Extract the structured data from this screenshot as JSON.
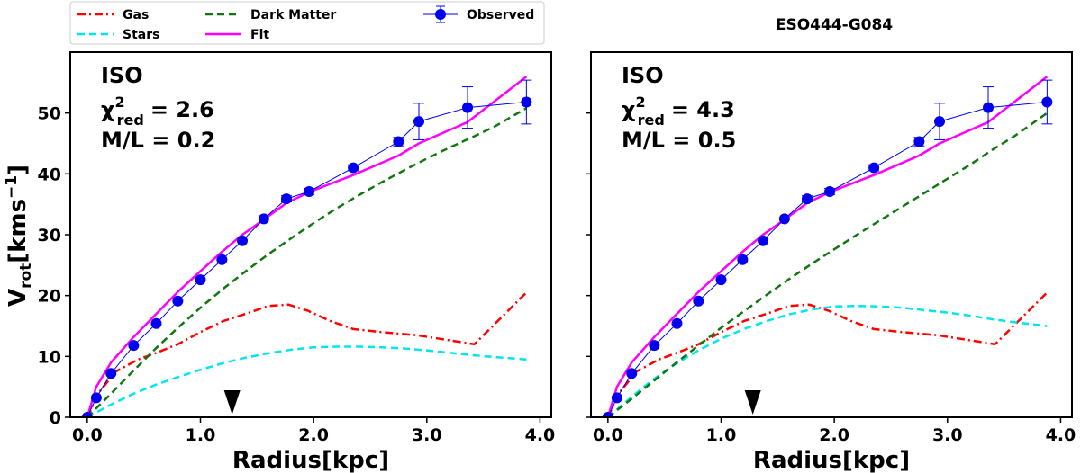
{
  "figure_title": "ESO444-G084",
  "legend": [
    {
      "key": "gas",
      "label": "Gas",
      "color": "#ff0000",
      "style": "dashdot"
    },
    {
      "key": "stars",
      "label": "Stars",
      "color": "#00e5ee",
      "style": "dashed"
    },
    {
      "key": "dm",
      "label": "Dark Matter",
      "color": "#117711",
      "style": "dashed"
    },
    {
      "key": "fit",
      "label": "Fit",
      "color": "#ff00ff",
      "style": "solid"
    },
    {
      "key": "obs",
      "label": "Observed",
      "color": "#0000ee",
      "style": "marker"
    }
  ],
  "ylabel_main": "V",
  "ylabel_sub": "rot",
  "ylabel_unit": "[kms",
  "ylabel_exp": "−1",
  "ylabel_close": "]",
  "chart_data": [
    {
      "type": "line",
      "panel": "left",
      "model": "ISO",
      "chi_label": "χ",
      "chi_exp": "2",
      "chi_sub": "red",
      "chi_value": "= 2.6",
      "ml_text": "M/L = 0.2",
      "xlabel": "Radius[kpc]",
      "ylabel": "Vrot[kms−1]",
      "xlim": [
        -0.15,
        4.1
      ],
      "ylim": [
        0,
        60
      ],
      "xticks": [
        0.0,
        1.0,
        2.0,
        3.0,
        4.0
      ],
      "xtick_labels": [
        "0.0",
        "1.0",
        "2.0",
        "3.0",
        "4.0"
      ],
      "yticks": [
        0,
        10,
        20,
        30,
        40,
        50
      ],
      "ytick_labels": [
        "0",
        "10",
        "20",
        "30",
        "40",
        "50"
      ],
      "marker_x": 1.28,
      "series": [
        {
          "name": "Gas",
          "x": [
            0.0,
            0.1,
            0.25,
            0.45,
            0.6,
            0.8,
            1.0,
            1.2,
            1.4,
            1.6,
            1.78,
            1.95,
            2.15,
            2.35,
            2.6,
            2.9,
            3.15,
            3.42,
            3.88
          ],
          "values": [
            0.0,
            4.0,
            7.5,
            9.5,
            10.5,
            12.0,
            14.0,
            15.8,
            17.0,
            18.3,
            18.5,
            17.5,
            15.8,
            14.5,
            14.0,
            13.5,
            12.8,
            12.0,
            20.5
          ]
        },
        {
          "name": "Stars",
          "x": [
            0.0,
            0.2,
            0.4,
            0.6,
            0.8,
            1.0,
            1.2,
            1.4,
            1.6,
            1.8,
            2.0,
            2.2,
            2.4,
            2.6,
            2.8,
            3.0,
            3.2,
            3.4,
            3.6,
            3.88
          ],
          "values": [
            0.0,
            2.0,
            3.8,
            5.3,
            6.6,
            7.8,
            8.9,
            9.8,
            10.5,
            11.1,
            11.5,
            11.6,
            11.6,
            11.5,
            11.3,
            11.0,
            10.6,
            10.2,
            9.9,
            9.5
          ]
        },
        {
          "name": "Dark Matter",
          "x": [
            0.0,
            0.2,
            0.4,
            0.6,
            0.8,
            1.0,
            1.2,
            1.4,
            1.6,
            1.8,
            2.0,
            2.2,
            2.4,
            2.6,
            2.8,
            3.0,
            3.2,
            3.4,
            3.6,
            3.88
          ],
          "values": [
            0.0,
            3.7,
            7.5,
            11.2,
            14.7,
            18.0,
            21.1,
            24.0,
            26.8,
            29.4,
            31.9,
            34.3,
            36.5,
            38.6,
            40.6,
            42.5,
            44.3,
            46.0,
            47.8,
            50.8
          ]
        },
        {
          "name": "Fit",
          "x": [
            0.0,
            0.08,
            0.21,
            0.41,
            0.61,
            0.8,
            1.0,
            1.19,
            1.37,
            1.56,
            1.76,
            1.96,
            2.35,
            2.75,
            2.93,
            3.36,
            3.88
          ],
          "values": [
            0.0,
            5.0,
            9.0,
            13.2,
            17.0,
            20.6,
            24.0,
            27.2,
            30.0,
            32.5,
            35.2,
            37.0,
            39.8,
            43.0,
            45.0,
            48.5,
            56.0
          ]
        },
        {
          "name": "Observed",
          "x": [
            0.0,
            0.08,
            0.21,
            0.41,
            0.61,
            0.8,
            1.0,
            1.19,
            1.37,
            1.56,
            1.76,
            1.96,
            2.35,
            2.75,
            2.93,
            3.36,
            3.88
          ],
          "values": [
            0.0,
            3.2,
            7.2,
            11.8,
            15.4,
            19.1,
            22.6,
            25.9,
            29.0,
            32.6,
            35.9,
            37.1,
            41.0,
            45.3,
            48.6,
            50.9,
            51.8
          ],
          "errors": [
            0,
            0,
            0,
            0,
            0,
            0,
            0,
            0,
            0,
            0,
            0.5,
            0.5,
            0.5,
            0.7,
            3.0,
            3.4,
            3.6
          ]
        }
      ]
    },
    {
      "type": "line",
      "panel": "right",
      "model": "ISO",
      "chi_label": "χ",
      "chi_exp": "2",
      "chi_sub": "red",
      "chi_value": "= 4.3",
      "ml_text": "M/L = 0.5",
      "xlabel": "Radius[kpc]",
      "ylabel": "",
      "xlim": [
        -0.15,
        4.1
      ],
      "ylim": [
        0,
        60
      ],
      "xticks": [
        0.0,
        1.0,
        2.0,
        3.0,
        4.0
      ],
      "xtick_labels": [
        "0.0",
        "1.0",
        "2.0",
        "3.0",
        "4.0"
      ],
      "yticks": [
        0,
        10,
        20,
        30,
        40,
        50
      ],
      "ytick_labels": [
        "",
        "",
        "",
        "",
        "",
        ""
      ],
      "marker_x": 1.28,
      "series": [
        {
          "name": "Gas",
          "x": [
            0.0,
            0.1,
            0.25,
            0.45,
            0.6,
            0.8,
            1.0,
            1.2,
            1.4,
            1.6,
            1.78,
            1.95,
            2.15,
            2.35,
            2.6,
            2.9,
            3.15,
            3.42,
            3.88
          ],
          "values": [
            0.0,
            4.0,
            7.5,
            9.5,
            10.5,
            12.0,
            14.0,
            15.8,
            17.0,
            18.3,
            18.5,
            17.5,
            15.8,
            14.5,
            14.0,
            13.5,
            12.8,
            12.0,
            20.5
          ]
        },
        {
          "name": "Stars",
          "x": [
            0.0,
            0.2,
            0.4,
            0.6,
            0.8,
            1.0,
            1.2,
            1.4,
            1.6,
            1.8,
            2.0,
            2.2,
            2.4,
            2.6,
            2.8,
            3.0,
            3.2,
            3.4,
            3.6,
            3.88
          ],
          "values": [
            0.0,
            3.2,
            6.2,
            8.8,
            11.0,
            12.9,
            14.5,
            15.8,
            16.9,
            17.7,
            18.2,
            18.3,
            18.2,
            18.0,
            17.6,
            17.2,
            16.7,
            16.1,
            15.6,
            15.0
          ]
        },
        {
          "name": "Dark Matter",
          "x": [
            0.0,
            0.2,
            0.4,
            0.6,
            0.8,
            1.0,
            1.2,
            1.4,
            1.6,
            1.8,
            2.0,
            2.2,
            2.4,
            2.6,
            2.8,
            3.0,
            3.2,
            3.4,
            3.6,
            3.88
          ],
          "values": [
            0.0,
            2.9,
            5.9,
            8.9,
            11.8,
            14.7,
            17.4,
            20.1,
            22.7,
            25.2,
            27.6,
            30.0,
            32.3,
            34.6,
            36.9,
            39.2,
            41.5,
            44.0,
            46.3,
            50.0
          ]
        },
        {
          "name": "Fit",
          "x": [
            0.0,
            0.08,
            0.21,
            0.41,
            0.61,
            0.8,
            1.0,
            1.19,
            1.37,
            1.56,
            1.76,
            1.96,
            2.35,
            2.75,
            2.93,
            3.36,
            3.88
          ],
          "values": [
            0.0,
            5.0,
            9.0,
            13.2,
            17.0,
            20.6,
            24.0,
            27.2,
            30.0,
            32.5,
            35.2,
            37.0,
            39.8,
            43.0,
            45.0,
            48.5,
            56.0
          ]
        },
        {
          "name": "Observed",
          "x": [
            0.0,
            0.08,
            0.21,
            0.41,
            0.61,
            0.8,
            1.0,
            1.19,
            1.37,
            1.56,
            1.76,
            1.96,
            2.35,
            2.75,
            2.93,
            3.36,
            3.88
          ],
          "values": [
            0.0,
            3.2,
            7.2,
            11.8,
            15.4,
            19.1,
            22.6,
            25.9,
            29.0,
            32.6,
            35.9,
            37.1,
            41.0,
            45.3,
            48.6,
            50.9,
            51.8
          ],
          "errors": [
            0,
            0,
            0,
            0,
            0,
            0,
            0,
            0,
            0,
            0,
            0.5,
            0.5,
            0.5,
            0.7,
            3.0,
            3.4,
            3.6
          ]
        }
      ]
    }
  ]
}
